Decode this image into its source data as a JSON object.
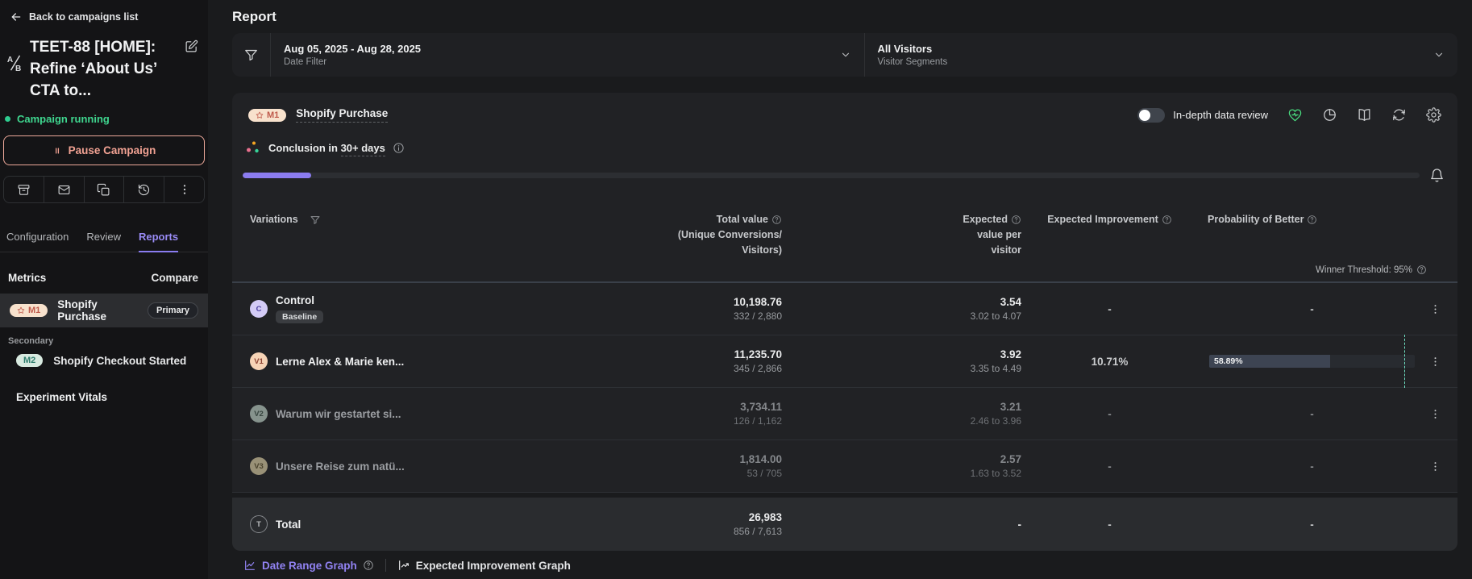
{
  "colors": {
    "accent_purple": "#8b7cf0",
    "status_green": "#3fd68f",
    "pause_salmon": "#f2a293",
    "m1_badge_bg": "#f8e2cd",
    "m1_badge_text": "#bf5a4b",
    "m2_badge_bg": "#d8eae0",
    "m2_badge_text": "#2f7d6d",
    "health_green": "#4ade80",
    "threshold_teal": "#6fe0c2"
  },
  "sidebar": {
    "back_label": "Back to campaigns list",
    "campaign_title": "TEET-88 [HOME]: Refine ‘About Us’ CTA to...",
    "status": "Campaign running",
    "pause_button_label": "Pause Campaign",
    "tabs": [
      {
        "label": "Configuration"
      },
      {
        "label": "Review"
      },
      {
        "label": "Reports"
      }
    ],
    "metrics_header": "Metrics",
    "compare_label": "Compare",
    "primary_metric": {
      "badge": "M1",
      "name": "Shopify Purchase",
      "tag": "Primary"
    },
    "secondary_section_label": "Secondary",
    "secondary_metric": {
      "badge": "M2",
      "name": "Shopify Checkout Started"
    },
    "experiment_vitals_label": "Experiment Vitals"
  },
  "main": {
    "page_title": "Report",
    "filters": {
      "date": {
        "value": "Aug 05, 2025 - Aug 28, 2025",
        "label": "Date Filter"
      },
      "segments": {
        "value": "All Visitors",
        "label": "Visitor Segments"
      }
    },
    "report": {
      "metric_badge": "M1",
      "metric_name": "Shopify Purchase",
      "toggle_label": "In-depth data review",
      "toggle_on": false,
      "conclusion_label": "Conclusion in",
      "conclusion_value": "30+ days",
      "progress_percent": 5.8,
      "winner_threshold_label": "Winner Threshold: 95%",
      "winner_threshold_percent": 95,
      "table": {
        "columns": {
          "variations": "Variations",
          "total_value_lines": [
            "Total value",
            "(Unique Conversions/",
            "Visitors)"
          ],
          "expected_lines": [
            "Expected",
            "value per",
            "visitor"
          ],
          "improvement": "Expected Improvement",
          "probability": "Probability of Better"
        },
        "rows": [
          {
            "badge": "C",
            "name": "Control",
            "tag": "Baseline",
            "total": "10,198.76",
            "conversions": "332 / 2,880",
            "expected": "3.54",
            "expected_range": "3.02 to 4.07",
            "improvement": "-",
            "probability": "-"
          },
          {
            "badge": "V1",
            "name": "Lerne Alex & Marie ken...",
            "total": "11,235.70",
            "conversions": "345 / 2,866",
            "expected": "3.92",
            "expected_range": "3.35 to 4.49",
            "improvement": "10.71%",
            "probability": "58.89%",
            "probability_percent": 58.89
          },
          {
            "badge": "V2",
            "name": "Warum wir gestartet si...",
            "total": "3,734.11",
            "conversions": "126 / 1,162",
            "expected": "3.21",
            "expected_range": "2.46 to 3.96",
            "improvement": "-",
            "probability": "-"
          },
          {
            "badge": "V3",
            "name": "Unsere Reise zum natü...",
            "total": "1,814.00",
            "conversions": "53 / 705",
            "expected": "2.57",
            "expected_range": "1.63 to 3.52",
            "improvement": "-",
            "probability": "-"
          }
        ],
        "total_row": {
          "badge": "T",
          "name": "Total",
          "total": "26,983",
          "conversions": "856 / 7,613",
          "expected": "-",
          "improvement": "-",
          "probability": "-"
        }
      },
      "graph_tabs": [
        {
          "label": "Date Range Graph"
        },
        {
          "label": "Expected Improvement Graph"
        }
      ]
    }
  }
}
